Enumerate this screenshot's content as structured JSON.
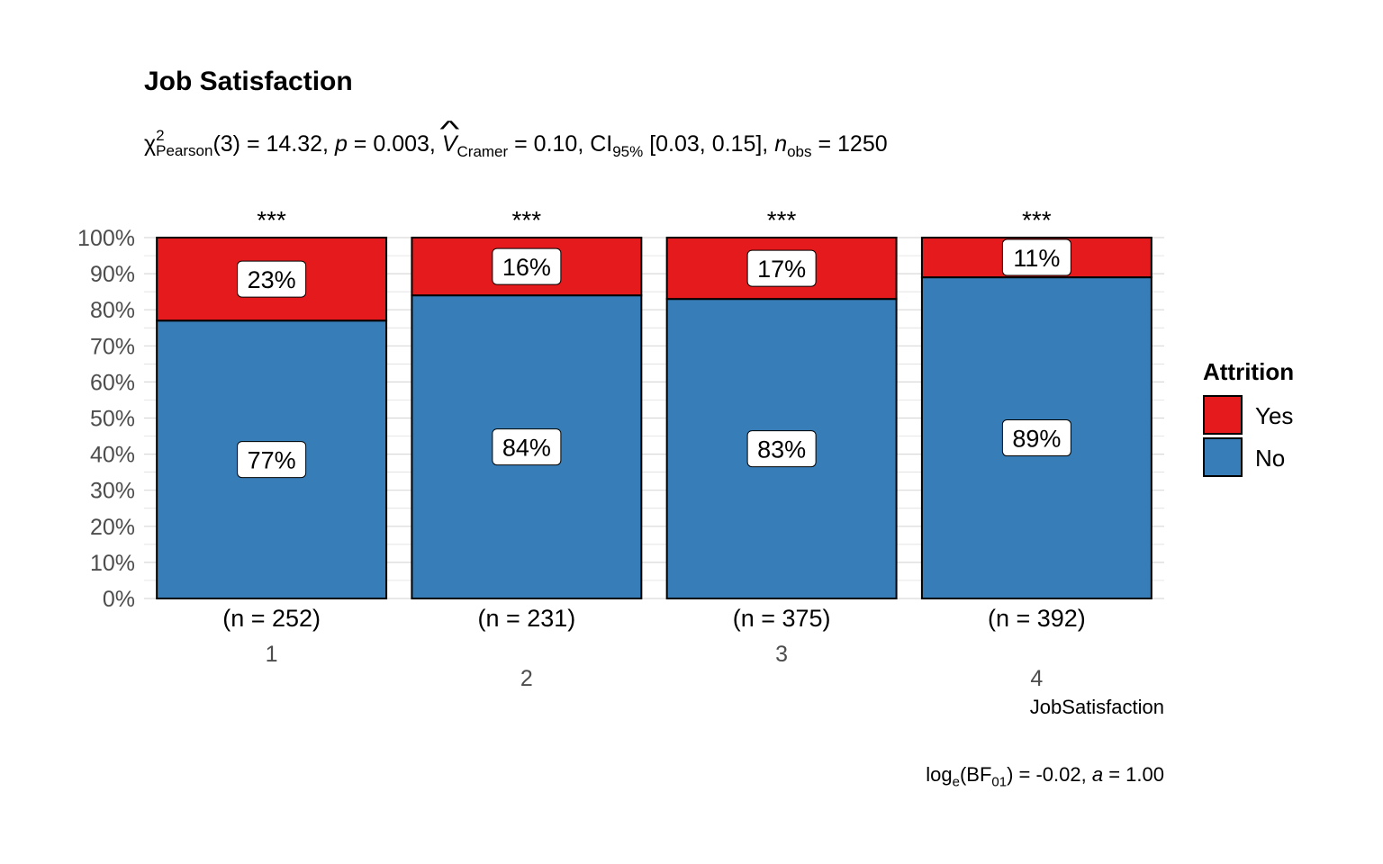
{
  "chart_data": {
    "type": "bar",
    "stacked": "percent",
    "title": "Job Satisfaction",
    "subtitle": {
      "stat": "χ",
      "stat_sup": "2",
      "stat_sub": "Pearson",
      "df": "(3) = 14.32, ",
      "p_label": "p",
      "p_value": " = 0.003, ",
      "v_label": "V",
      "v_sub": "Cramer",
      "v_value": " = 0.10, CI",
      "ci_sub": "95%",
      "ci_value": " [0.03, 0.15], ",
      "n_label": "n",
      "n_sub": "obs",
      "n_value": " = 1250"
    },
    "caption": {
      "log": "log",
      "log_sub": "e",
      "bf": "(BF",
      "bf_sub": "01",
      "rest": ") = -0.02, ",
      "a_label": "a",
      "a_value": " = 1.00"
    },
    "xlabel": "JobSatisfaction",
    "ylabel": "",
    "ylim": [
      0,
      100
    ],
    "y_ticks": [
      "0%",
      "10%",
      "20%",
      "30%",
      "40%",
      "50%",
      "60%",
      "70%",
      "80%",
      "90%",
      "100%"
    ],
    "categories": [
      "1",
      "2",
      "3",
      "4"
    ],
    "counts": [
      "(n = 252)",
      "(n = 231)",
      "(n = 375)",
      "(n = 392)"
    ],
    "significance": [
      "***",
      "***",
      "***",
      "***"
    ],
    "legend": {
      "title": "Attrition",
      "position": "right"
    },
    "series": [
      {
        "name": "No",
        "color": "#377EB8",
        "values": [
          77,
          84,
          83,
          89
        ],
        "labels": [
          "77%",
          "84%",
          "83%",
          "89%"
        ]
      },
      {
        "name": "Yes",
        "color": "#E41A1C",
        "values": [
          23,
          16,
          17,
          11
        ],
        "labels": [
          "23%",
          "16%",
          "17%",
          "11%"
        ]
      }
    ],
    "grid": true
  }
}
